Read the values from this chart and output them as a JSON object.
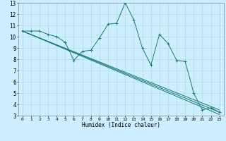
{
  "title": "",
  "xlabel": "Humidex (Indice chaleur)",
  "ylabel": "",
  "bg_color": "#cceeff",
  "line_color": "#1a7a6e",
  "grid_color": "#aadddd",
  "xlim": [
    -0.5,
    23.5
  ],
  "ylim": [
    3,
    13
  ],
  "xticks": [
    0,
    1,
    2,
    3,
    4,
    5,
    6,
    7,
    8,
    9,
    10,
    11,
    12,
    13,
    14,
    15,
    16,
    17,
    18,
    19,
    20,
    21,
    22,
    23
  ],
  "yticks": [
    3,
    4,
    5,
    6,
    7,
    8,
    9,
    10,
    11,
    12,
    13
  ],
  "main_x": [
    0,
    1,
    2,
    3,
    4,
    5,
    6,
    7,
    8,
    9,
    10,
    11,
    12,
    13,
    14,
    15,
    16,
    17,
    18,
    19,
    20,
    21,
    22,
    23
  ],
  "main_y": [
    10.5,
    10.5,
    10.5,
    10.2,
    10.0,
    9.5,
    7.9,
    8.7,
    8.8,
    9.9,
    11.1,
    11.2,
    13.0,
    11.5,
    9.0,
    7.5,
    10.2,
    9.4,
    7.9,
    7.8,
    5.0,
    3.5,
    3.7,
    3.3
  ],
  "line1_x": [
    0,
    23
  ],
  "line1_y": [
    10.5,
    3.5
  ],
  "line2_x": [
    0,
    23
  ],
  "line2_y": [
    10.5,
    3.3
  ],
  "line3_x": [
    0,
    23
  ],
  "line3_y": [
    10.5,
    3.1
  ]
}
